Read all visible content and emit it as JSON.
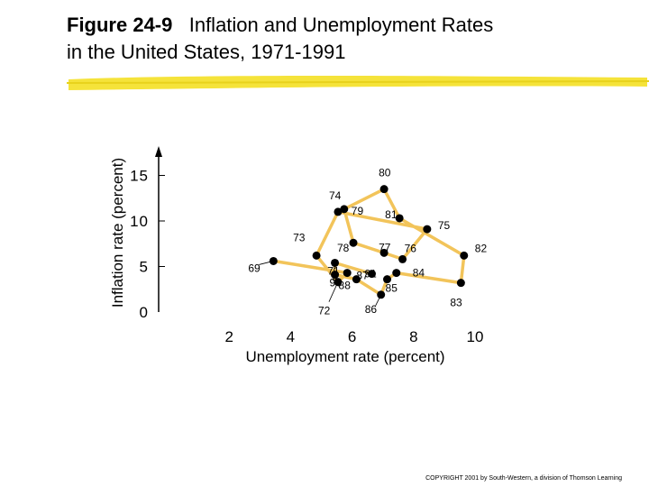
{
  "title": {
    "figure_label": "Figure 24-9",
    "line1": "Inflation and Unemployment Rates",
    "line2": "in the United States, 1971-1991"
  },
  "copyright": "COPYRIGHT 2001 by South-Western, a division of Thomson Learning",
  "colors": {
    "path": "#f2c45a",
    "point": "#000000",
    "rule": "#f5e33a"
  },
  "chart_data": {
    "type": "scatter",
    "connected": true,
    "title": "",
    "xlabel": "Unemployment rate (percent)",
    "ylabel": "Inflation rate (percent)",
    "xlim": [
      0,
      10
    ],
    "ylim": [
      0,
      16
    ],
    "xticks": [
      "2",
      "4",
      "6",
      "8",
      "10"
    ],
    "yticks": [
      "0",
      "5",
      "10",
      "15"
    ],
    "grid": false,
    "points": [
      {
        "label": "69",
        "x": 3.5,
        "y": 5.6
      },
      {
        "label": "71",
        "x": 5.9,
        "y": 4.3
      },
      {
        "label": "72",
        "x": 5.6,
        "y": 3.3
      },
      {
        "label": "73",
        "x": 4.9,
        "y": 6.2
      },
      {
        "label": "74",
        "x": 5.6,
        "y": 11.0
      },
      {
        "label": "75",
        "x": 8.5,
        "y": 9.1
      },
      {
        "label": "76",
        "x": 7.7,
        "y": 5.8
      },
      {
        "label": "77",
        "x": 7.1,
        "y": 6.5
      },
      {
        "label": "78",
        "x": 6.1,
        "y": 7.6
      },
      {
        "label": "79",
        "x": 5.8,
        "y": 11.3
      },
      {
        "label": "80",
        "x": 7.1,
        "y": 13.5
      },
      {
        "label": "81",
        "x": 7.6,
        "y": 10.3
      },
      {
        "label": "82",
        "x": 9.7,
        "y": 6.2
      },
      {
        "label": "83",
        "x": 9.6,
        "y": 3.2
      },
      {
        "label": "84",
        "x": 7.5,
        "y": 4.3
      },
      {
        "label": "85",
        "x": 7.2,
        "y": 3.6
      },
      {
        "label": "86",
        "x": 7.0,
        "y": 1.9
      },
      {
        "label": "87",
        "x": 6.2,
        "y": 3.6
      },
      {
        "label": "88",
        "x": 5.5,
        "y": 4.1
      },
      {
        "label": "90",
        "x": 5.5,
        "y": 5.4
      },
      {
        "label": "91",
        "x": 6.7,
        "y": 4.2
      }
    ]
  }
}
